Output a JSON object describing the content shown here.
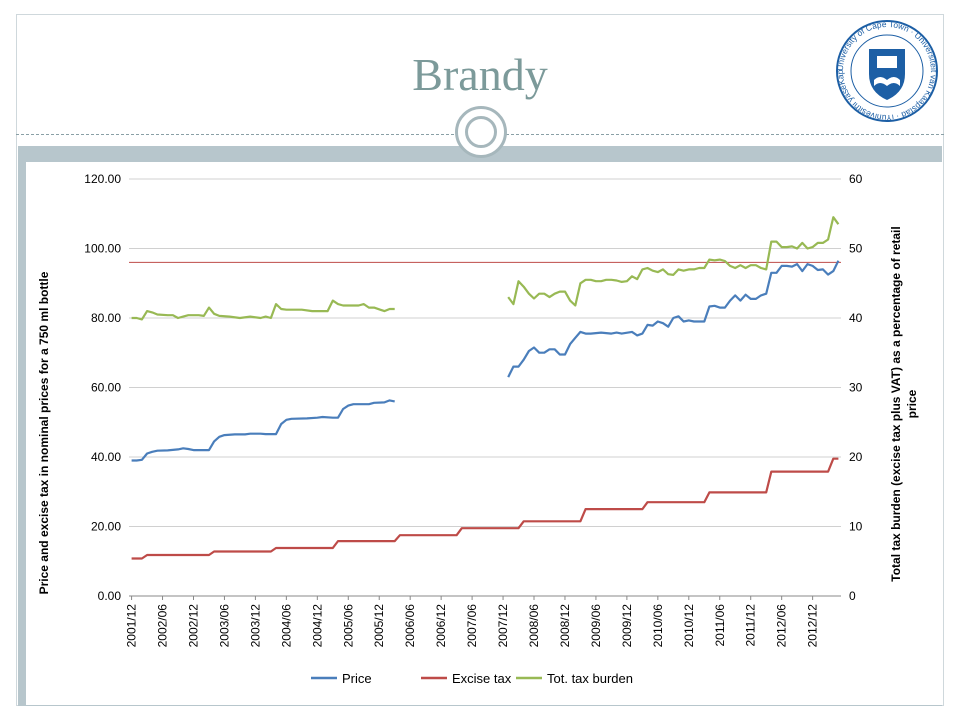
{
  "slide": {
    "title": "Brandy",
    "logo_text": "University of Cape Town · Universiteit van Kaapstad · iYunivesithi yaseKapa ·"
  },
  "colors": {
    "title": "#7c9a9a",
    "price": "#4a7ebb",
    "excise": "#be4b48",
    "burden": "#98b954",
    "reference": "#be4b48",
    "logo": "#1d5fa5"
  },
  "chart_data": {
    "type": "line",
    "ylabel_left": "Price and excise tax in nominal prices for a 750 ml bottle",
    "ylabel_right": "Total tax burden (excise tax plus VAT) as a percentage of retail price",
    "ylim_left": [
      0,
      120
    ],
    "ylim_right": [
      0,
      60
    ],
    "yticks_left": [
      "0.00",
      "20.00",
      "40.00",
      "60.00",
      "80.00",
      "100.00",
      "120.00"
    ],
    "yticks_right": [
      "0",
      "10",
      "20",
      "30",
      "40",
      "50",
      "60"
    ],
    "xtick_labels": [
      "2001/12",
      "2002/06",
      "2002/12",
      "2003/06",
      "2003/12",
      "2004/06",
      "2004/12",
      "2005/06",
      "2005/12",
      "2006/06",
      "2006/12",
      "2007/06",
      "2007/12",
      "2008/06",
      "2008/12",
      "2009/06",
      "2009/12",
      "2010/06",
      "2010/12",
      "2011/06",
      "2011/12",
      "2012/06",
      "2012/12"
    ],
    "xlim": [
      "2001/12",
      "2013/05"
    ],
    "reference_line_right": 48,
    "legend_position": "bottom",
    "series": [
      {
        "name": "Price",
        "axis": "left",
        "segments": [
          [
            [
              "2001/12",
              39.0
            ],
            [
              "2002/01",
              39.0
            ],
            [
              "2002/02",
              39.2
            ],
            [
              "2002/03",
              41.0
            ],
            [
              "2002/04",
              41.5
            ],
            [
              "2002/05",
              41.8
            ],
            [
              "2002/07",
              41.9
            ],
            [
              "2002/09",
              42.2
            ],
            [
              "2002/10",
              42.5
            ],
            [
              "2002/11",
              42.3
            ],
            [
              "2002/12",
              42.0
            ],
            [
              "2003/02",
              42.0
            ],
            [
              "2003/03",
              42.0
            ],
            [
              "2003/04",
              44.5
            ],
            [
              "2003/05",
              45.8
            ],
            [
              "2003/06",
              46.3
            ],
            [
              "2003/08",
              46.5
            ],
            [
              "2003/10",
              46.5
            ],
            [
              "2003/11",
              46.7
            ],
            [
              "2004/01",
              46.7
            ],
            [
              "2004/02",
              46.6
            ],
            [
              "2004/04",
              46.6
            ],
            [
              "2004/05",
              49.5
            ],
            [
              "2004/06",
              50.7
            ],
            [
              "2004/07",
              51.0
            ],
            [
              "2004/10",
              51.1
            ],
            [
              "2004/12",
              51.3
            ],
            [
              "2005/01",
              51.5
            ],
            [
              "2005/03",
              51.3
            ],
            [
              "2005/04",
              51.3
            ],
            [
              "2005/05",
              53.8
            ],
            [
              "2005/06",
              54.8
            ],
            [
              "2005/07",
              55.2
            ],
            [
              "2005/10",
              55.2
            ],
            [
              "2005/11",
              55.6
            ],
            [
              "2006/01",
              55.7
            ],
            [
              "2006/02",
              56.3
            ],
            [
              "2006/03",
              56.0
            ]
          ],
          [
            [
              "2008/01",
              63.0
            ],
            [
              "2008/02",
              66.0
            ],
            [
              "2008/03",
              66.0
            ],
            [
              "2008/04",
              68.0
            ],
            [
              "2008/05",
              70.5
            ],
            [
              "2008/06",
              71.5
            ],
            [
              "2008/07",
              70.0
            ],
            [
              "2008/08",
              70.0
            ],
            [
              "2008/09",
              71.0
            ],
            [
              "2008/10",
              71.0
            ],
            [
              "2008/11",
              69.5
            ],
            [
              "2008/12",
              69.5
            ],
            [
              "2009/01",
              72.5
            ],
            [
              "2009/02",
              74.3
            ],
            [
              "2009/03",
              76.0
            ],
            [
              "2009/04",
              75.5
            ],
            [
              "2009/05",
              75.5
            ],
            [
              "2009/07",
              75.8
            ],
            [
              "2009/09",
              75.5
            ],
            [
              "2009/10",
              75.8
            ],
            [
              "2009/11",
              75.5
            ],
            [
              "2010/01",
              76.0
            ],
            [
              "2010/02",
              75.0
            ],
            [
              "2010/03",
              75.5
            ],
            [
              "2010/04",
              78.0
            ],
            [
              "2010/05",
              77.8
            ],
            [
              "2010/06",
              79.0
            ],
            [
              "2010/07",
              78.5
            ],
            [
              "2010/08",
              77.5
            ],
            [
              "2010/09",
              80.0
            ],
            [
              "2010/10",
              80.5
            ],
            [
              "2010/11",
              79.0
            ],
            [
              "2010/12",
              79.3
            ],
            [
              "2011/01",
              79.0
            ],
            [
              "2011/02",
              79.0
            ],
            [
              "2011/03",
              79.0
            ],
            [
              "2011/04",
              83.3
            ],
            [
              "2011/05",
              83.5
            ],
            [
              "2011/06",
              83.0
            ],
            [
              "2011/07",
              83.0
            ],
            [
              "2011/08",
              85.0
            ],
            [
              "2011/09",
              86.5
            ],
            [
              "2011/10",
              85.0
            ],
            [
              "2011/11",
              86.7
            ],
            [
              "2011/12",
              85.5
            ],
            [
              "2012/01",
              85.5
            ],
            [
              "2012/02",
              86.5
            ],
            [
              "2012/03",
              87.0
            ],
            [
              "2012/04",
              93.0
            ],
            [
              "2012/05",
              93.0
            ],
            [
              "2012/06",
              95.0
            ],
            [
              "2012/07",
              95.0
            ],
            [
              "2012/08",
              94.8
            ],
            [
              "2012/09",
              95.5
            ],
            [
              "2012/10",
              93.5
            ],
            [
              "2012/11",
              95.5
            ],
            [
              "2012/12",
              95.0
            ],
            [
              "2013/01",
              93.8
            ],
            [
              "2013/02",
              94.0
            ],
            [
              "2013/03",
              92.5
            ],
            [
              "2013/04",
              93.5
            ],
            [
              "2013/05",
              96.5
            ]
          ]
        ]
      },
      {
        "name": "Excise tax",
        "axis": "left",
        "segments": [
          [
            [
              "2001/12",
              10.8
            ],
            [
              "2002/02",
              10.8
            ],
            [
              "2002/03",
              11.8
            ],
            [
              "2003/03",
              11.8
            ],
            [
              "2003/04",
              12.8
            ],
            [
              "2004/03",
              12.8
            ],
            [
              "2004/04",
              13.8
            ],
            [
              "2005/03",
              13.8
            ],
            [
              "2005/04",
              15.8
            ],
            [
              "2006/03",
              15.8
            ],
            [
              "2006/04",
              17.5
            ],
            [
              "2007/03",
              17.5
            ],
            [
              "2007/04",
              19.5
            ],
            [
              "2008/03",
              19.5
            ],
            [
              "2008/04",
              21.5
            ],
            [
              "2009/03",
              21.5
            ],
            [
              "2009/04",
              25.0
            ],
            [
              "2010/03",
              25.0
            ],
            [
              "2010/04",
              27.0
            ],
            [
              "2011/03",
              27.0
            ],
            [
              "2011/04",
              29.8
            ],
            [
              "2012/03",
              29.8
            ],
            [
              "2012/04",
              35.8
            ],
            [
              "2013/03",
              35.8
            ],
            [
              "2013/04",
              39.5
            ],
            [
              "2013/05",
              39.5
            ]
          ]
        ]
      },
      {
        "name": "Tot. tax burden",
        "axis": "right",
        "segments": [
          [
            [
              "2001/12",
              40.0
            ],
            [
              "2002/01",
              40.0
            ],
            [
              "2002/02",
              39.8
            ],
            [
              "2002/03",
              41.0
            ],
            [
              "2002/04",
              40.8
            ],
            [
              "2002/05",
              40.5
            ],
            [
              "2002/07",
              40.4
            ],
            [
              "2002/08",
              40.4
            ],
            [
              "2002/09",
              40.0
            ],
            [
              "2002/10",
              40.2
            ],
            [
              "2002/11",
              40.4
            ],
            [
              "2002/12",
              40.4
            ],
            [
              "2003/01",
              40.4
            ],
            [
              "2003/02",
              40.3
            ],
            [
              "2003/03",
              41.5
            ],
            [
              "2003/04",
              40.6
            ],
            [
              "2003/05",
              40.3
            ],
            [
              "2003/07",
              40.2
            ],
            [
              "2003/09",
              40.0
            ],
            [
              "2003/11",
              40.2
            ],
            [
              "2004/01",
              40.0
            ],
            [
              "2004/02",
              40.2
            ],
            [
              "2004/03",
              40.0
            ],
            [
              "2004/04",
              42.0
            ],
            [
              "2004/05",
              41.3
            ],
            [
              "2004/06",
              41.2
            ],
            [
              "2004/09",
              41.2
            ],
            [
              "2004/11",
              41.0
            ],
            [
              "2004/12",
              41.0
            ],
            [
              "2005/01",
              41.0
            ],
            [
              "2005/02",
              41.0
            ],
            [
              "2005/03",
              42.5
            ],
            [
              "2005/04",
              42.0
            ],
            [
              "2005/05",
              41.8
            ],
            [
              "2005/08",
              41.8
            ],
            [
              "2005/09",
              42.0
            ],
            [
              "2005/10",
              41.5
            ],
            [
              "2005/11",
              41.5
            ],
            [
              "2006/01",
              41.0
            ],
            [
              "2006/02",
              41.3
            ],
            [
              "2006/03",
              41.3
            ]
          ],
          [
            [
              "2008/01",
              43.0
            ],
            [
              "2008/02",
              42.0
            ],
            [
              "2008/03",
              45.3
            ],
            [
              "2008/04",
              44.5
            ],
            [
              "2008/05",
              43.5
            ],
            [
              "2008/06",
              42.8
            ],
            [
              "2008/07",
              43.5
            ],
            [
              "2008/08",
              43.5
            ],
            [
              "2008/09",
              43.0
            ],
            [
              "2008/10",
              43.5
            ],
            [
              "2008/11",
              43.8
            ],
            [
              "2008/12",
              43.8
            ],
            [
              "2009/01",
              42.5
            ],
            [
              "2009/02",
              41.8
            ],
            [
              "2009/03",
              45.0
            ],
            [
              "2009/04",
              45.5
            ],
            [
              "2009/05",
              45.5
            ],
            [
              "2009/06",
              45.3
            ],
            [
              "2009/07",
              45.3
            ],
            [
              "2009/08",
              45.5
            ],
            [
              "2009/09",
              45.5
            ],
            [
              "2009/10",
              45.4
            ],
            [
              "2009/11",
              45.2
            ],
            [
              "2009/12",
              45.3
            ],
            [
              "2010/01",
              46.0
            ],
            [
              "2010/02",
              45.6
            ],
            [
              "2010/03",
              47.0
            ],
            [
              "2010/04",
              47.2
            ],
            [
              "2010/05",
              46.8
            ],
            [
              "2010/06",
              46.6
            ],
            [
              "2010/07",
              47.0
            ],
            [
              "2010/08",
              46.3
            ],
            [
              "2010/09",
              46.2
            ],
            [
              "2010/10",
              47.0
            ],
            [
              "2010/11",
              46.8
            ],
            [
              "2010/12",
              47.0
            ],
            [
              "2011/01",
              47.0
            ],
            [
              "2011/02",
              47.2
            ],
            [
              "2011/03",
              47.2
            ],
            [
              "2011/04",
              48.4
            ],
            [
              "2011/05",
              48.3
            ],
            [
              "2011/06",
              48.4
            ],
            [
              "2011/07",
              48.2
            ],
            [
              "2011/08",
              47.5
            ],
            [
              "2011/09",
              47.2
            ],
            [
              "2011/10",
              47.6
            ],
            [
              "2011/11",
              47.2
            ],
            [
              "2011/12",
              47.6
            ],
            [
              "2012/01",
              47.6
            ],
            [
              "2012/02",
              47.2
            ],
            [
              "2012/03",
              47.0
            ],
            [
              "2012/04",
              51.0
            ],
            [
              "2012/05",
              51.0
            ],
            [
              "2012/06",
              50.2
            ],
            [
              "2012/07",
              50.2
            ],
            [
              "2012/08",
              50.3
            ],
            [
              "2012/09",
              50.0
            ],
            [
              "2012/10",
              50.8
            ],
            [
              "2012/11",
              50.0
            ],
            [
              "2012/12",
              50.2
            ],
            [
              "2013/01",
              50.8
            ],
            [
              "2013/02",
              50.8
            ],
            [
              "2013/03",
              51.3
            ],
            [
              "2013/04",
              54.5
            ],
            [
              "2013/05",
              53.5
            ]
          ]
        ]
      }
    ]
  }
}
